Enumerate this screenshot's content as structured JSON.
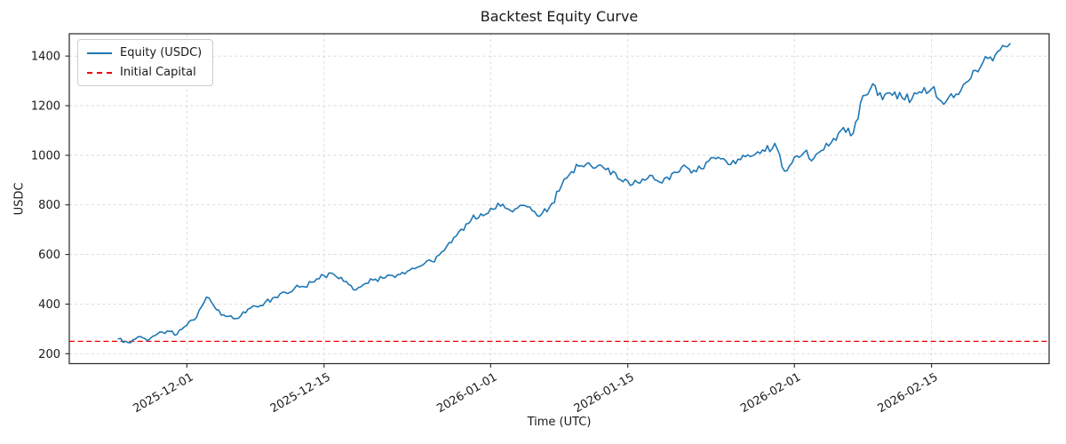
{
  "chart": {
    "title": "Backtest Equity Curve",
    "xlabel": "Time (UTC)",
    "ylabel": "USDC",
    "legend": {
      "equity_label": "Equity (USDC)",
      "initial_capital_label": "Initial Capital",
      "position": "upper left"
    },
    "colors": {
      "equity_line": "#1f77b4",
      "initial_capital_line": "#ee0000",
      "grid": "#d8d8d8",
      "spine": "#262626",
      "text": "#1a1a1a",
      "background": "#ffffff"
    }
  },
  "chart_data": {
    "type": "line",
    "title": "Backtest Equity Curve",
    "xlabel": "Time (UTC)",
    "ylabel": "USDC",
    "grid": true,
    "legend_position": "upper left",
    "y_ticks": [
      200,
      400,
      600,
      800,
      1000,
      1200,
      1400
    ],
    "ylim": [
      160,
      1490
    ],
    "x_tick_labels": [
      "2025-12-01",
      "2025-12-15",
      "2026-01-01",
      "2026-01-15",
      "2026-02-01",
      "2026-02-15"
    ],
    "xlim": [
      "2025-11-19",
      "2026-02-27"
    ],
    "initial_capital": 250,
    "series": [
      {
        "name": "Equity (USDC)",
        "color": "#1f77b4",
        "style": "solid",
        "dates": [
          "2025-11-24",
          "2025-11-25",
          "2025-11-26",
          "2025-11-27",
          "2025-11-28",
          "2025-11-29",
          "2025-11-30",
          "2025-12-01",
          "2025-12-02",
          "2025-12-03",
          "2025-12-04",
          "2025-12-05",
          "2025-12-06",
          "2025-12-07",
          "2025-12-08",
          "2025-12-09",
          "2025-12-10",
          "2025-12-11",
          "2025-12-12",
          "2025-12-13",
          "2025-12-14",
          "2025-12-15",
          "2025-12-16",
          "2025-12-17",
          "2025-12-18",
          "2025-12-19",
          "2025-12-20",
          "2025-12-21",
          "2025-12-22",
          "2025-12-23",
          "2025-12-24",
          "2025-12-25",
          "2025-12-26",
          "2025-12-27",
          "2025-12-28",
          "2025-12-29",
          "2025-12-30",
          "2025-12-31",
          "2026-01-01",
          "2026-01-02",
          "2026-01-03",
          "2026-01-04",
          "2026-01-05",
          "2026-01-06",
          "2026-01-07",
          "2026-01-08",
          "2026-01-09",
          "2026-01-10",
          "2026-01-11",
          "2026-01-12",
          "2026-01-13",
          "2026-01-14",
          "2026-01-15",
          "2026-01-16",
          "2026-01-17",
          "2026-01-18",
          "2026-01-19",
          "2026-01-20",
          "2026-01-21",
          "2026-01-22",
          "2026-01-23",
          "2026-01-24",
          "2026-01-25",
          "2026-01-26",
          "2026-01-27",
          "2026-01-28",
          "2026-01-29",
          "2026-01-30",
          "2026-01-31",
          "2026-02-01",
          "2026-02-02",
          "2026-02-03",
          "2026-02-04",
          "2026-02-05",
          "2026-02-06",
          "2026-02-07",
          "2026-02-08",
          "2026-02-09",
          "2026-02-10",
          "2026-02-11",
          "2026-02-12",
          "2026-02-13",
          "2026-02-14",
          "2026-02-15",
          "2026-02-16",
          "2026-02-17",
          "2026-02-18",
          "2026-02-19",
          "2026-02-20",
          "2026-02-21",
          "2026-02-22",
          "2026-02-23"
        ],
        "values": [
          260,
          245,
          268,
          252,
          280,
          292,
          278,
          315,
          348,
          428,
          378,
          350,
          342,
          365,
          392,
          408,
          428,
          448,
          465,
          470,
          490,
          515,
          520,
          492,
          458,
          478,
          497,
          504,
          515,
          528,
          545,
          556,
          572,
          610,
          648,
          702,
          738,
          764,
          786,
          795,
          778,
          798,
          792,
          754,
          790,
          856,
          920,
          956,
          970,
          960,
          948,
          905,
          896,
          890,
          906,
          898,
          912,
          930,
          952,
          934,
          972,
          986,
          978,
          966,
          994,
          1004,
          1016,
          1048,
          936,
          992,
          1012,
          988,
          1022,
          1068,
          1112,
          1088,
          1240,
          1288,
          1224,
          1242,
          1232,
          1228,
          1252,
          1268,
          1218,
          1248,
          1262,
          1310,
          1356,
          1396,
          1424,
          1450
        ]
      },
      {
        "name": "Initial Capital",
        "color": "#ee0000",
        "style": "dashed",
        "value": 250
      }
    ]
  }
}
